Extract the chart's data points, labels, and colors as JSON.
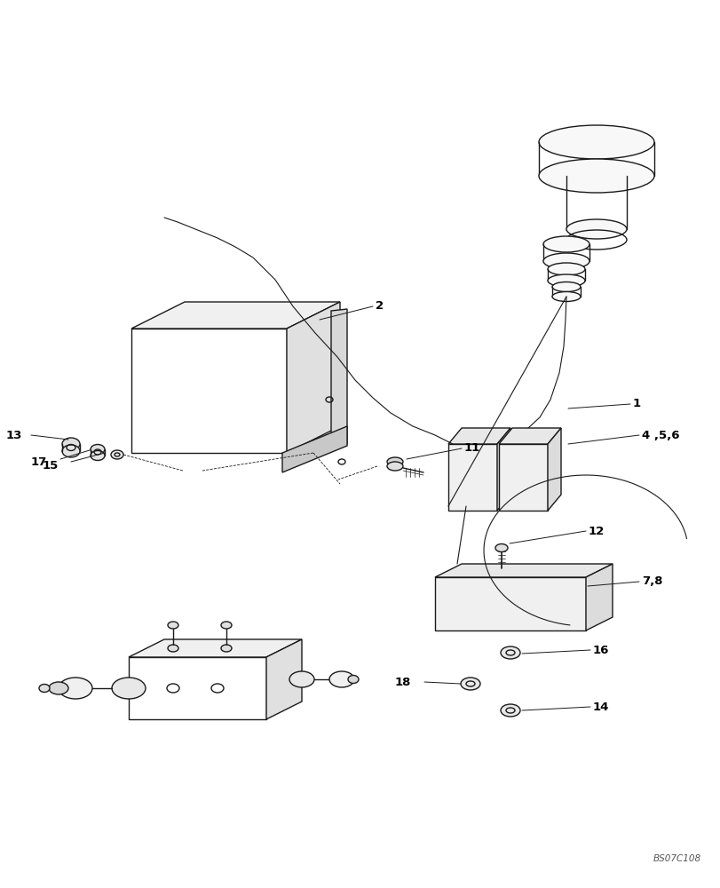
{
  "bg_color": "#ffffff",
  "line_color": "#1a1a1a",
  "text_color": "#000000",
  "figsize": [
    8.12,
    10.0
  ],
  "dpi": 100,
  "watermark": "BS07C108"
}
